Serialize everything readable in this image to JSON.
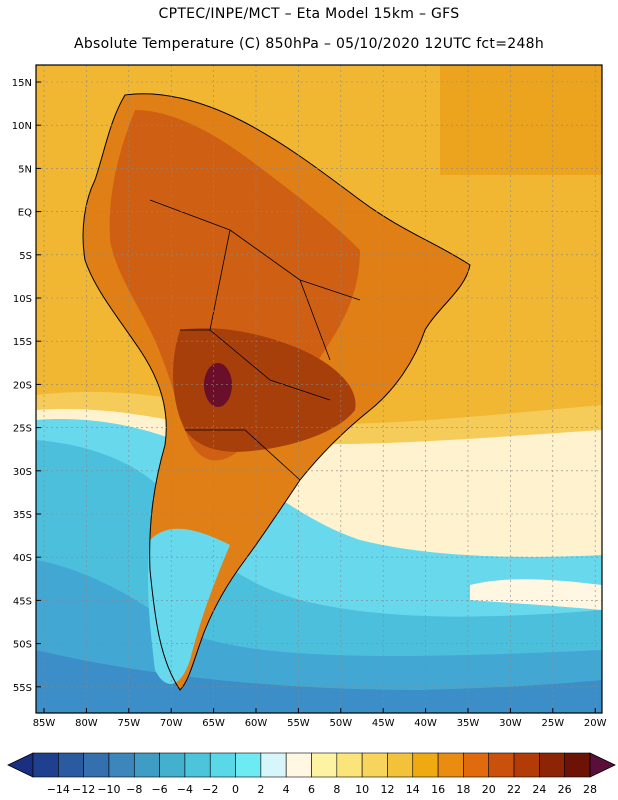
{
  "header": {
    "line1": "CPTEC/INPE/MCT –  Eta Model 15km – GFS",
    "line2": "Absolute Temperature (C) 850hPa – 05/10/2020 12UTC fct=248h"
  },
  "map": {
    "lat_labels": [
      "15N",
      "10N",
      "5N",
      "EQ",
      "5S",
      "10S",
      "15S",
      "20S",
      "25S",
      "30S",
      "35S",
      "40S",
      "45S",
      "50S",
      "55S"
    ],
    "lon_labels": [
      "85W",
      "80W",
      "75W",
      "70W",
      "65W",
      "60W",
      "55W",
      "50W",
      "45W",
      "40W",
      "35W",
      "30W",
      "25W",
      "20W"
    ]
  },
  "colorbar": {
    "ticks": [
      "-14",
      "-12",
      "-10",
      "-8",
      "-6",
      "-4",
      "-2",
      "0",
      "2",
      "4",
      "6",
      "8",
      "10",
      "12",
      "14",
      "16",
      "18",
      "20",
      "22",
      "24",
      "26",
      "28"
    ],
    "colors": [
      "#1f3f8f",
      "#2a5a9f",
      "#3370ad",
      "#3c86bb",
      "#3f9cc4",
      "#43b0ce",
      "#4cc5dc",
      "#59d8e8",
      "#6eeaf3",
      "#d6f6fb",
      "#fff7e2",
      "#fdf3a2",
      "#fbe47a",
      "#f7d45c",
      "#f3c23b",
      "#efaa12",
      "#e98c10",
      "#e06a0d",
      "#c9510b",
      "#b23b08",
      "#8d2406",
      "#6d1305"
    ],
    "low_color": "#1a2f80",
    "high_color": "#5a0f3a"
  },
  "palette": {
    "ocean_warm": "#f1b732",
    "ocean_hot": "#eca41f",
    "land_warm": "#e07f16",
    "land_hot": "#cf5f12",
    "land_hotter": "#a73f0b",
    "land_hottest": "#6a0f2a",
    "tropic_band": "#f5cc5a",
    "pale_band": "#fff2cf",
    "cyan_1": "#68d9ec",
    "cyan_2": "#4cbfdc",
    "blue_1": "#43a7d3",
    "blue_2": "#3b8ec7"
  }
}
